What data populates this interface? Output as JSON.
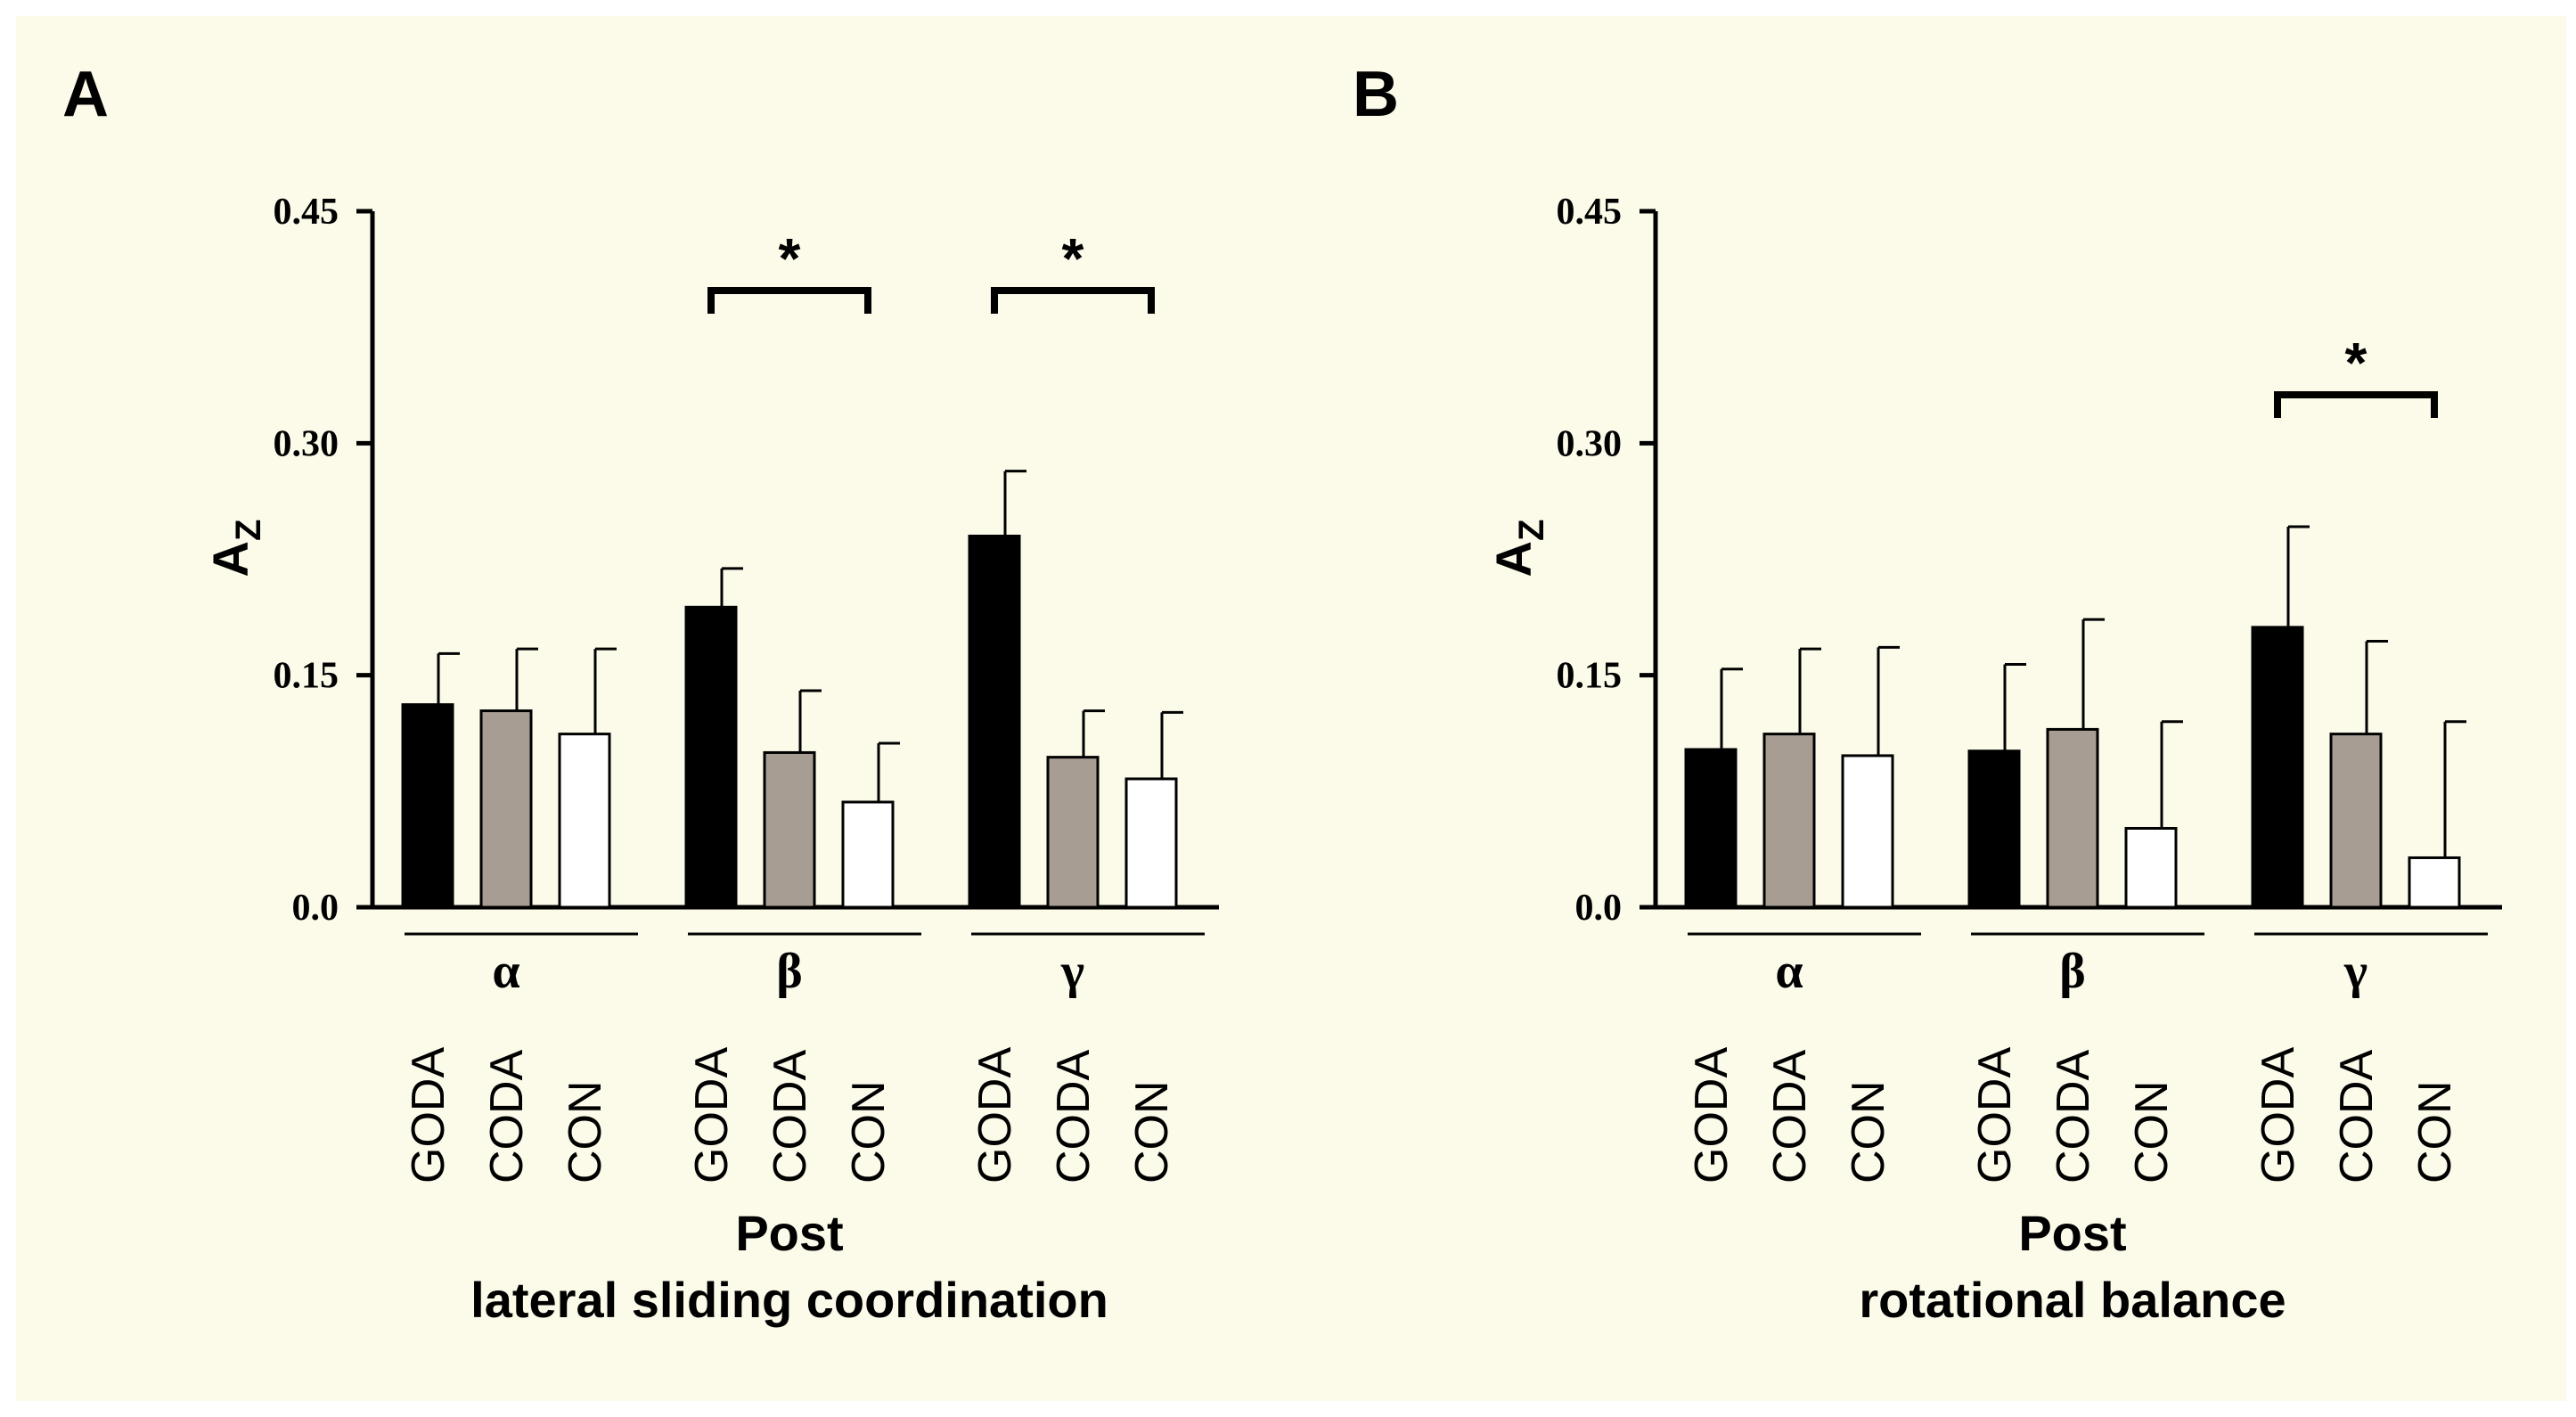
{
  "colors": {
    "background": "#fcfbea",
    "GODA": "#000000",
    "CODA": "#a89d93",
    "CON": "#ffffff"
  },
  "chart_data": [
    {
      "type": "bar",
      "panel": "A",
      "ylabel": "A",
      "ylabel_subscript": "Z",
      "ylim": [
        0,
        0.45
      ],
      "yticks": [
        0.0,
        0.15,
        0.3,
        0.45
      ],
      "ytick_labels": [
        "0.0",
        "0.15",
        "0.30",
        "0.45"
      ],
      "groups": [
        "α",
        "β",
        "γ"
      ],
      "categories": [
        "GODA",
        "CODA",
        "CON"
      ],
      "series": [
        {
          "name": "GODA",
          "values": [
            0.131,
            0.194,
            0.24
          ],
          "errors": [
            0.033,
            0.025,
            0.042
          ]
        },
        {
          "name": "CODA",
          "values": [
            0.127,
            0.1,
            0.097
          ],
          "errors": [
            0.04,
            0.04,
            0.03
          ]
        },
        {
          "name": "CON",
          "values": [
            0.112,
            0.068,
            0.083
          ],
          "errors": [
            0.055,
            0.038,
            0.043
          ]
        }
      ],
      "significance": [
        {
          "group": "β",
          "from": "GODA",
          "to": "CON",
          "label": "*"
        },
        {
          "group": "γ",
          "from": "GODA",
          "to": "CON",
          "label": "*"
        }
      ],
      "caption_line1": "Post",
      "caption_line2": "lateral sliding coordination"
    },
    {
      "type": "bar",
      "panel": "B",
      "ylabel": "A",
      "ylabel_subscript": "Z",
      "ylim": [
        0,
        0.45
      ],
      "yticks": [
        0.0,
        0.15,
        0.3,
        0.45
      ],
      "ytick_labels": [
        "0.0",
        "0.15",
        "0.30",
        "0.45"
      ],
      "groups": [
        "α",
        "β",
        "γ"
      ],
      "categories": [
        "GODA",
        "CODA",
        "CON"
      ],
      "series": [
        {
          "name": "GODA",
          "values": [
            0.102,
            0.101,
            0.181
          ],
          "errors": [
            0.052,
            0.056,
            0.065
          ]
        },
        {
          "name": "CODA",
          "values": [
            0.112,
            0.115,
            0.112
          ],
          "errors": [
            0.055,
            0.071,
            0.06
          ]
        },
        {
          "name": "CON",
          "values": [
            0.098,
            0.051,
            0.032
          ],
          "errors": [
            0.07,
            0.069,
            0.088
          ]
        }
      ],
      "significance": [
        {
          "group": "γ",
          "from": "GODA",
          "to": "CON",
          "label": "*"
        }
      ],
      "caption_line1": "Post",
      "caption_line2": "rotational balance"
    }
  ]
}
